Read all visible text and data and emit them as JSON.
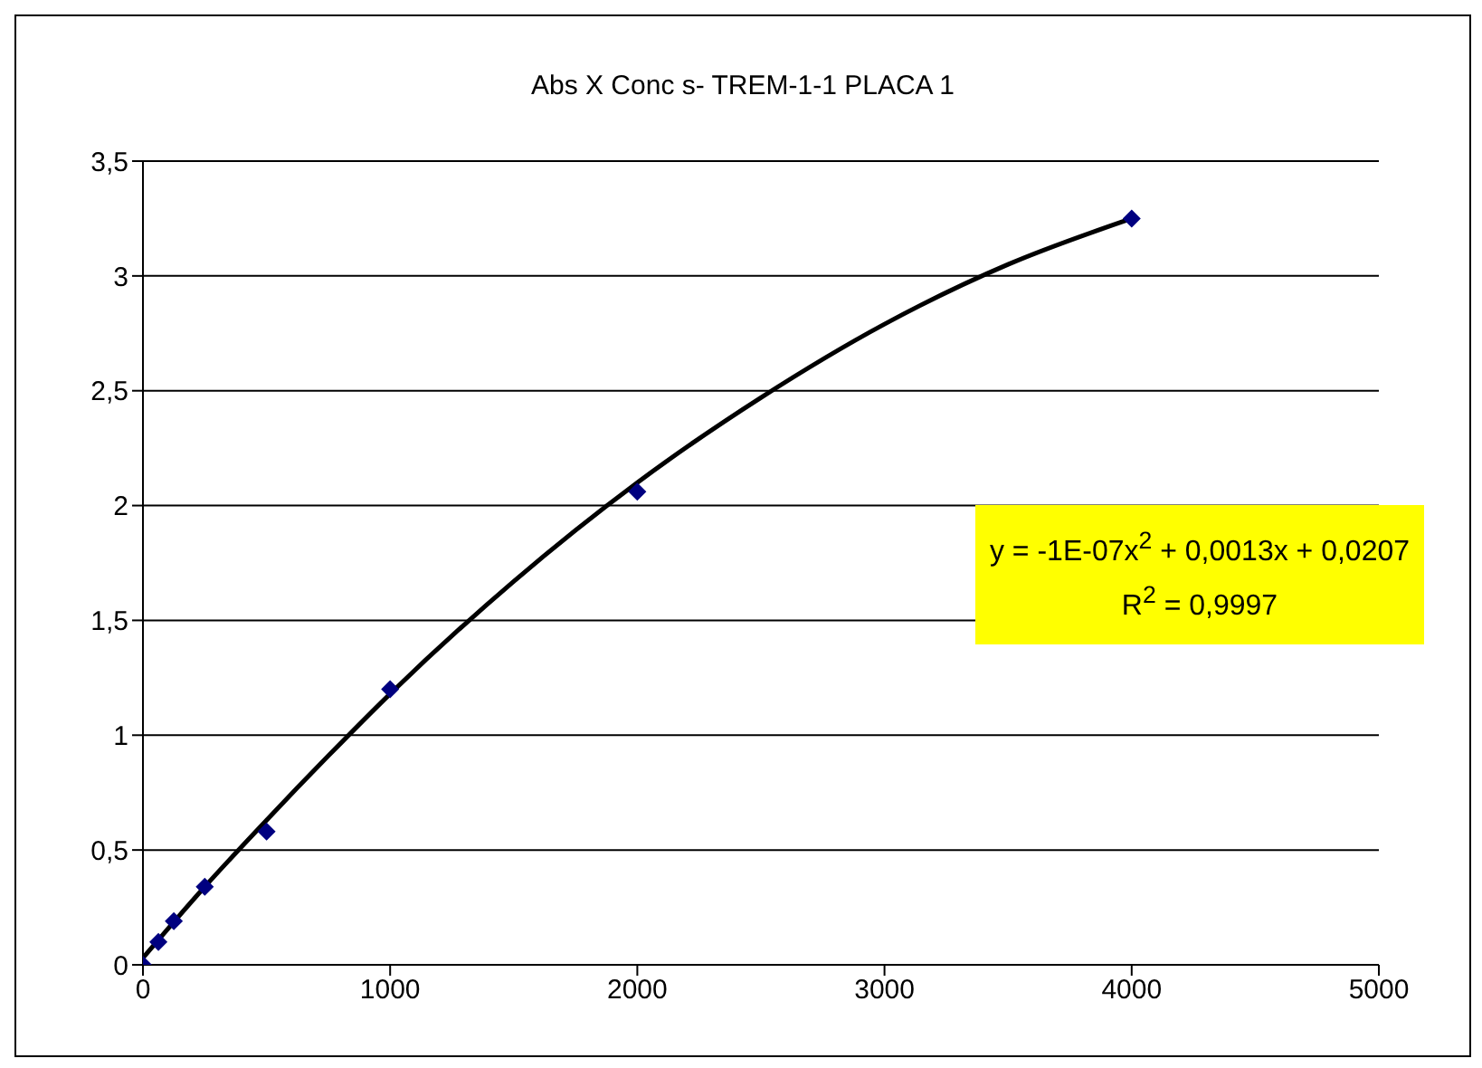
{
  "chart_data": {
    "type": "scatter",
    "title": "Abs X Conc s- TREM-1-1 PLACA 1",
    "x": [
      0,
      62.5,
      125,
      250,
      500,
      1000,
      2000,
      4000
    ],
    "series": [
      {
        "type": "scatter",
        "color": "#000080",
        "marker": "diamond",
        "values": [
          0,
          0.1,
          0.19,
          0.34,
          0.58,
          1.2,
          2.06,
          3.25
        ]
      },
      {
        "type": "line",
        "color": "#000000",
        "marker": "none",
        "x": [
          0,
          250,
          500,
          750,
          1000,
          1500,
          2000,
          2500,
          3000,
          3500,
          4000
        ],
        "values": [
          0.03,
          0.34,
          0.63,
          0.91,
          1.18,
          1.67,
          2.1,
          2.47,
          2.79,
          3.05,
          3.25
        ]
      }
    ],
    "xlim": [
      0,
      5000
    ],
    "xticks": [
      0,
      1000,
      2000,
      3000,
      4000,
      5000
    ],
    "ylim": [
      0,
      3.5
    ],
    "yticks": [
      0,
      {
        "value": 0.5,
        "label": "0,5"
      },
      1,
      {
        "value": 1.5,
        "label": "1,5"
      },
      2,
      {
        "value": 2.5,
        "label": "2,5"
      },
      3,
      {
        "value": 3.5,
        "label": "3,5"
      }
    ],
    "grid": "y",
    "legend": false,
    "annotations": [
      "y = -1E-07x$^{2}$ + 0,0013x + 0,0207\nR$^{2}$ = 0,9997"
    ]
  }
}
